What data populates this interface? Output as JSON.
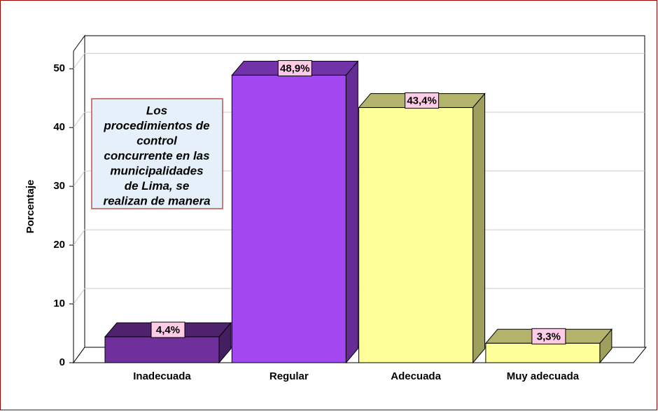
{
  "chart_data": {
    "type": "bar3d",
    "ylabel": "Porcentaje",
    "categories": [
      "Inadecuada",
      "Regular",
      "Adecuada",
      "Muy adecuada"
    ],
    "values": [
      4.4,
      48.9,
      43.4,
      3.3
    ],
    "value_labels": [
      "4,4%",
      "48,9%",
      "43,4%",
      "3,3%"
    ],
    "colors": [
      "#70309c",
      "#a347f0",
      "#ffff99",
      "#ffff99"
    ],
    "ylim": [
      0,
      53
    ],
    "yticks": [
      0,
      10,
      20,
      30,
      40,
      50
    ],
    "grid": true,
    "annotation": [
      "Los",
      "procedimientos de",
      "control",
      "concurrente en las",
      "municipalidades",
      "de Lima, se",
      "realizan de manera"
    ]
  }
}
